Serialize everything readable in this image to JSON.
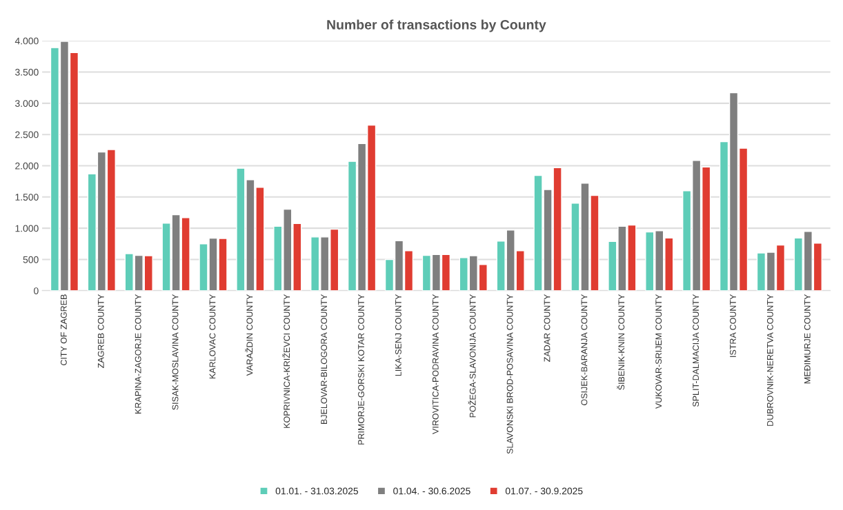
{
  "chart_data": {
    "type": "bar",
    "title": "Number of transactions by County",
    "categories": [
      "CITY OF ZAGREB",
      "ZAGREB COUNTY",
      "KRAPINA-ZAGORJE COUNTY",
      "SISAK-MOSLAVINA COUNTY",
      "KARLOVAC COUNTY",
      "VARAŽDIN COUNTY",
      "KOPRIVNICA-KRIŽEVCI COUNTY",
      "BJELOVAR-BILOGORA COUNTY",
      "PRIMORJE-GORSKI KOTAR COUNTY",
      "LIKA-SENJ COUNTY",
      "VIROVITICA-PODRAVINA COUNTY",
      "POŽEGA-SLAVONIJA COUNTY",
      "SLAVONSKI BROD-POSAVINA COUNTY",
      "ZADAR COUNTY",
      "OSIJEK-BARANJA COUNTY",
      "ŠIBENIK-KNIN COUNTY",
      "VUKOVAR-SRIJEM COUNTY",
      "SPLIT-DALMACIJA COUNTY",
      "ISTRA COUNTY",
      "DUBROVNIK-NERETVA COUNTY",
      "MEĐIMURJE COUNTY"
    ],
    "series": [
      {
        "name": "01.01. - 31.03.2025",
        "color": "#5ecdb8",
        "values": [
          3890,
          1870,
          593,
          1080,
          750,
          1960,
          1030,
          860,
          2070,
          500,
          565,
          530,
          795,
          1845,
          1400,
          790,
          940,
          1600,
          2385,
          605,
          845
        ]
      },
      {
        "name": "01.04. - 30.6.2025",
        "color": "#7f7f7f",
        "values": [
          3990,
          2220,
          565,
          1215,
          840,
          1775,
          1305,
          860,
          2355,
          800,
          580,
          560,
          970,
          1620,
          1720,
          1030,
          960,
          2085,
          3170,
          615,
          950
        ]
      },
      {
        "name": "01.07. - 30.9.2025",
        "color": "#e03c31",
        "values": [
          3810,
          2260,
          560,
          1170,
          835,
          1655,
          1075,
          985,
          2650,
          640,
          580,
          420,
          640,
          1970,
          1525,
          1050,
          845,
          1980,
          2280,
          730,
          760
        ]
      }
    ],
    "ylim": [
      0,
      4000
    ],
    "yticks": [
      0,
      {
        "value": 500,
        "label": "500"
      },
      {
        "value": 1000,
        "label": "1.000"
      },
      {
        "value": 1500,
        "label": "1.500"
      },
      {
        "value": 2000,
        "label": "2.000"
      },
      {
        "value": 2500,
        "label": "2.500"
      },
      {
        "value": 3000,
        "label": "3.000"
      },
      {
        "value": 3500,
        "label": "3.500"
      },
      {
        "value": 4000,
        "label": "4.000"
      }
    ],
    "grid": "y",
    "legend": "bottom"
  }
}
